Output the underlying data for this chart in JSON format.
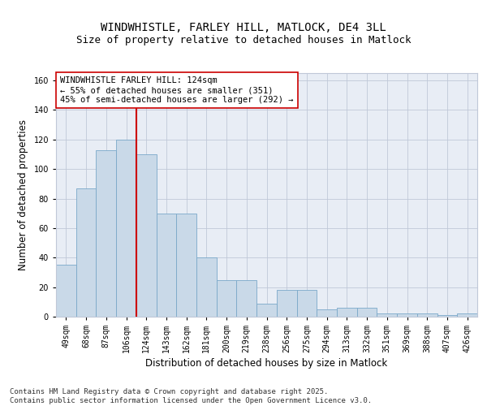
{
  "title1": "WINDWHISTLE, FARLEY HILL, MATLOCK, DE4 3LL",
  "title2": "Size of property relative to detached houses in Matlock",
  "xlabel": "Distribution of detached houses by size in Matlock",
  "ylabel": "Number of detached properties",
  "bar_labels": [
    "49sqm",
    "68sqm",
    "87sqm",
    "106sqm",
    "124sqm",
    "143sqm",
    "162sqm",
    "181sqm",
    "200sqm",
    "219sqm",
    "238sqm",
    "256sqm",
    "275sqm",
    "294sqm",
    "313sqm",
    "332sqm",
    "351sqm",
    "369sqm",
    "388sqm",
    "407sqm",
    "426sqm"
  ],
  "bar_values": [
    35,
    87,
    113,
    120,
    110,
    70,
    70,
    40,
    25,
    25,
    9,
    18,
    18,
    5,
    6,
    6,
    2,
    2,
    2,
    1,
    2
  ],
  "bar_color": "#c9d9e8",
  "bar_edgecolor": "#7aa8c9",
  "vline_index": 4,
  "vline_color": "#cc0000",
  "annotation_text": "WINDWHISTLE FARLEY HILL: 124sqm\n← 55% of detached houses are smaller (351)\n45% of semi-detached houses are larger (292) →",
  "annotation_box_edgecolor": "#cc0000",
  "annotation_box_facecolor": "#ffffff",
  "ylim": [
    0,
    165
  ],
  "yticks": [
    0,
    20,
    40,
    60,
    80,
    100,
    120,
    140,
    160
  ],
  "grid_color": "#c0c8d8",
  "background_color": "#e8edf5",
  "footer_text": "Contains HM Land Registry data © Crown copyright and database right 2025.\nContains public sector information licensed under the Open Government Licence v3.0.",
  "title_fontsize": 10,
  "subtitle_fontsize": 9,
  "axis_label_fontsize": 8.5,
  "tick_fontsize": 7,
  "annotation_fontsize": 7.5,
  "footer_fontsize": 6.5
}
